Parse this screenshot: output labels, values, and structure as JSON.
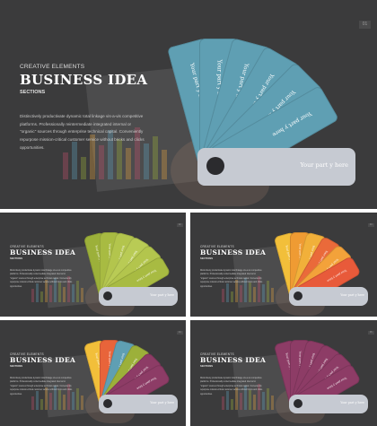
{
  "slides": [
    {
      "subtitle": "CREATIVE ELEMENTS",
      "title": "BUSINESS IDEA",
      "section": "SECTIONS",
      "body": "Distinctively productivate dynamic total linkage vis-a-vis competitive platforms. Professionally reintermediate integrated internal or \"organic\" sources through enterprise technical capital. Conveniently repurpose mission-critical customer service without bricks and clicks opportunities.",
      "number": "01",
      "card_text": "Your part y here",
      "base_text": "Your part y here",
      "colors": [
        "#5f9fb3",
        "#5f9fb3",
        "#5f9fb3",
        "#5f9fb3",
        "#5f9fb3",
        "#5f9fb3"
      ]
    },
    {
      "subtitle": "CREATIVE ELEMENTS",
      "title": "BUSINESS IDEA",
      "section": "SECTIONS",
      "body": "Distinctively productivate dynamic total linkage vis-a-vis competitive platforms. Professionally reintermediate integrated internal or \"organic\" sources through enterprise technical capital. Conveniently repurpose mission-critical customer service without bricks and clicks opportunities.",
      "number": "02",
      "card_text": "Your part y here",
      "base_text": "Your part y here",
      "colors": [
        "#9cb03a",
        "#a8bb42",
        "#b3c54d",
        "#b9cb55",
        "#b3c54d",
        "#a8bb42"
      ]
    },
    {
      "subtitle": "CREATIVE ELEMENTS",
      "title": "BUSINESS IDEA",
      "section": "SECTIONS",
      "body": "Distinctively productivate dynamic total linkage vis-a-vis competitive platforms. Professionally reintermediate integrated internal or \"organic\" sources through enterprise technical capital. Conveniently repurpose mission-critical customer service without bricks and clicks opportunities.",
      "number": "03",
      "card_text": "Your part y here",
      "base_text": "Your part y here",
      "colors": [
        "#f2bf3a",
        "#ef9b33",
        "#f1b03a",
        "#ea6a3a",
        "#f3a23a",
        "#e85a3a"
      ]
    },
    {
      "subtitle": "CREATIVE ELEMENTS",
      "title": "BUSINESS IDEA",
      "section": "SECTIONS",
      "body": "Distinctively productivate dynamic total linkage vis-a-vis competitive platforms. Professionally reintermediate integrated internal or \"organic\" sources through enterprise technical capital. Conveniently repurpose mission-critical customer service without bricks and clicks opportunities.",
      "number": "04",
      "card_text": "Your part y here",
      "base_text": "Your part y here",
      "colors": [
        "#f2bf3a",
        "#e8643a",
        "#5f9fb3",
        "#9cb03a",
        "#8d3c66",
        "#8d3c66"
      ]
    },
    {
      "subtitle": "CREATIVE ELEMENTS",
      "title": "BUSINESS IDEA",
      "section": "SECTIONS",
      "body": "Distinctively productivate dynamic total linkage vis-a-vis competitive platforms. Professionally reintermediate integrated internal or \"organic\" sources through enterprise technical capital. Conveniently repurpose mission-critical customer service without bricks and clicks opportunities.",
      "number": "05",
      "card_text": "Your part y here",
      "base_text": "Your part y here",
      "colors": [
        "#8d3c66",
        "#8d3c66",
        "#8d3c66",
        "#8d3c66",
        "#8d3c66",
        "#8d3c66"
      ]
    }
  ]
}
